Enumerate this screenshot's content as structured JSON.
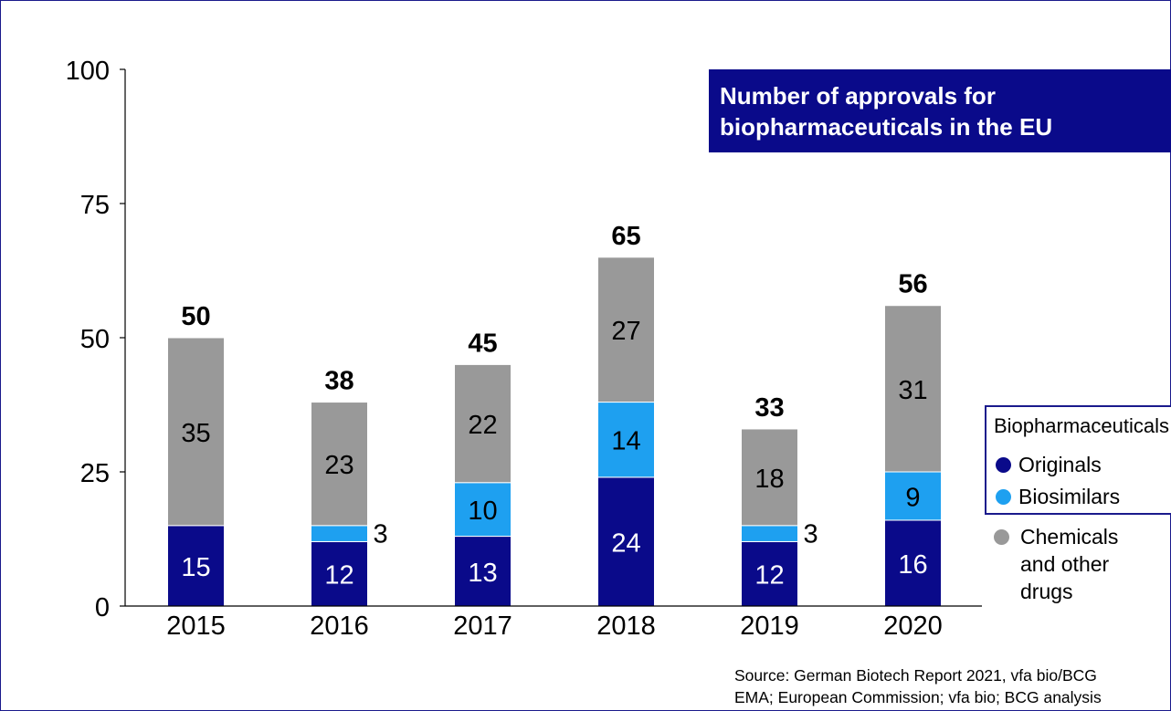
{
  "chart_data": {
    "type": "bar",
    "stacked": true,
    "title": "Number of approvals for biopharmaceuticals in the EU",
    "title_lines": [
      "Number of approvals for",
      "biopharmaceuticals in the EU"
    ],
    "categories": [
      "2015",
      "2016",
      "2017",
      "2018",
      "2019",
      "2020"
    ],
    "series": [
      {
        "name": "Originals",
        "values": [
          15,
          12,
          13,
          24,
          12,
          16
        ],
        "color": "#0a0a8a",
        "label_color": "#ffffff"
      },
      {
        "name": "Biosimilars",
        "values": [
          0,
          3,
          10,
          14,
          3,
          9
        ],
        "color": "#1ea0f0",
        "label_color": "#000000"
      },
      {
        "name": "Chemicals and other drugs",
        "values": [
          35,
          23,
          22,
          27,
          18,
          31
        ],
        "color": "#999999",
        "label_color": "#000000"
      }
    ],
    "totals": [
      50,
      38,
      45,
      65,
      33,
      56
    ],
    "y_ticks": [
      0,
      25,
      50,
      75,
      100
    ],
    "ylim": [
      0,
      100
    ],
    "xlabel": "",
    "ylabel": "",
    "grid": false,
    "legend_position": "right"
  },
  "legend": {
    "heading": "Biopharmaceuticals:",
    "originals": "Originals",
    "biosimilars": "Biosimilars",
    "chemicals_lines": [
      "Chemicals",
      "and other",
      "drugs"
    ]
  },
  "source": {
    "line1": "Source: German Biotech Report 2021, vfa bio/BCG",
    "line2": "EMA; European Commission; vfa bio; BCG analysis"
  },
  "colors": {
    "originals": "#0a0a8a",
    "biosimilars": "#1ea0f0",
    "chemicals": "#999999",
    "title_bg": "#0a0a8a"
  }
}
